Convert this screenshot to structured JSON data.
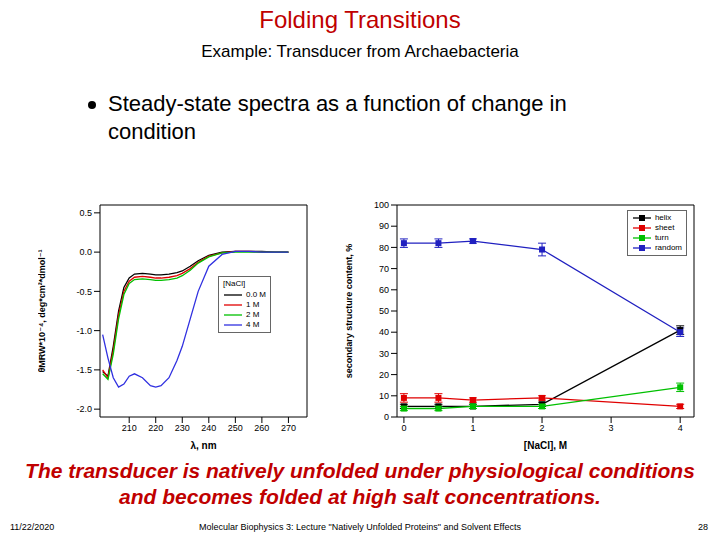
{
  "slide": {
    "title": "Folding Transitions",
    "subtitle": "Example: Transducer from Archaebacteria",
    "bullet": "Steady-state spectra as a function of change in condition",
    "caption": "The transducer is natively unfolded under physiological conditions and becomes folded at high salt concentrations.",
    "footer": {
      "date": "11/22/2020",
      "center": "Molecular Biophysics 3: Lecture \"Natively Unfolded Proteins\" and Solvent Effects",
      "page": "28"
    }
  },
  "chart_data": [
    {
      "type": "line",
      "x_label": "λ, nm",
      "y_label": "θMRW*10⁻⁴, deg*cm²*dmol⁻¹",
      "legend_title": "[NaCl]",
      "legend": "right",
      "grid": false,
      "x": [
        200,
        202,
        204,
        206,
        208,
        210,
        212,
        215,
        218,
        220,
        222,
        225,
        228,
        230,
        233,
        236,
        240,
        245,
        250,
        255,
        260,
        265,
        270
      ],
      "xlim": [
        199,
        277
      ],
      "ylim": [
        -2.1,
        0.6
      ],
      "xticks": [
        210,
        220,
        230,
        240,
        250,
        260,
        270
      ],
      "yticks": [
        {
          "value": -2,
          "label": "-2.0"
        },
        -1.5,
        {
          "value": -1,
          "label": "-1.0"
        },
        -0.5,
        {
          "value": 0,
          "label": "0.0"
        },
        0.5
      ],
      "series": [
        {
          "name": "0.0 M",
          "color": "#000000",
          "values": [
            -1.52,
            -1.58,
            -1.2,
            -0.75,
            -0.45,
            -0.33,
            -0.28,
            -0.27,
            -0.28,
            -0.29,
            -0.29,
            -0.28,
            -0.26,
            -0.24,
            -0.18,
            -0.11,
            -0.04,
            0,
            0.01,
            0.01,
            0.01,
            0,
            0
          ]
        },
        {
          "name": "1 M",
          "color": "#e00000",
          "values": [
            -1.5,
            -1.6,
            -1.25,
            -0.8,
            -0.5,
            -0.37,
            -0.32,
            -0.31,
            -0.32,
            -0.33,
            -0.33,
            -0.32,
            -0.3,
            -0.27,
            -0.21,
            -0.13,
            -0.05,
            -0.01,
            0.01,
            0.01,
            0,
            0,
            0
          ]
        },
        {
          "name": "2 M",
          "color": "#00c000",
          "values": [
            -1.55,
            -1.62,
            -1.3,
            -0.85,
            -0.54,
            -0.4,
            -0.35,
            -0.34,
            -0.35,
            -0.36,
            -0.36,
            -0.35,
            -0.33,
            -0.3,
            -0.23,
            -0.14,
            -0.06,
            -0.01,
            0,
            0,
            0,
            0,
            0
          ]
        },
        {
          "name": "4 M",
          "color": "#3030e0",
          "values": [
            -1.05,
            -1.35,
            -1.6,
            -1.72,
            -1.68,
            -1.58,
            -1.55,
            -1.6,
            -1.7,
            -1.72,
            -1.7,
            -1.6,
            -1.38,
            -1.2,
            -0.85,
            -0.5,
            -0.18,
            -0.03,
            0.01,
            0.01,
            0,
            0,
            0
          ]
        }
      ]
    },
    {
      "type": "line",
      "x_label": "[NaCl], M",
      "y_label": "secondary structure content, %",
      "legend": "upper right",
      "grid": false,
      "x": [
        0,
        0.5,
        1,
        2,
        4
      ],
      "xlim": [
        -0.1,
        4.2
      ],
      "ylim": [
        0,
        100
      ],
      "xticks": [
        0,
        1,
        2,
        3,
        4
      ],
      "yticks": [
        0,
        10,
        20,
        30,
        40,
        50,
        60,
        70,
        80,
        90,
        100
      ],
      "series": [
        {
          "name": "helix",
          "color": "#000000",
          "marker": "square",
          "values": [
            5,
            5,
            5,
            6,
            41
          ],
          "errors": [
            1,
            1,
            1,
            1,
            2
          ]
        },
        {
          "name": "sheet",
          "color": "#e00000",
          "marker": "square",
          "values": [
            9,
            9,
            8,
            9,
            5
          ],
          "errors": [
            2,
            2,
            1,
            1,
            1
          ]
        },
        {
          "name": "turn",
          "color": "#00c000",
          "marker": "square",
          "values": [
            4,
            4,
            5,
            5,
            14
          ],
          "errors": [
            1,
            1,
            1,
            1,
            2
          ]
        },
        {
          "name": "random",
          "color": "#2020c0",
          "marker": "square",
          "values": [
            82,
            82,
            83,
            79,
            40
          ],
          "errors": [
            2,
            2,
            1,
            3,
            2
          ]
        }
      ]
    }
  ]
}
